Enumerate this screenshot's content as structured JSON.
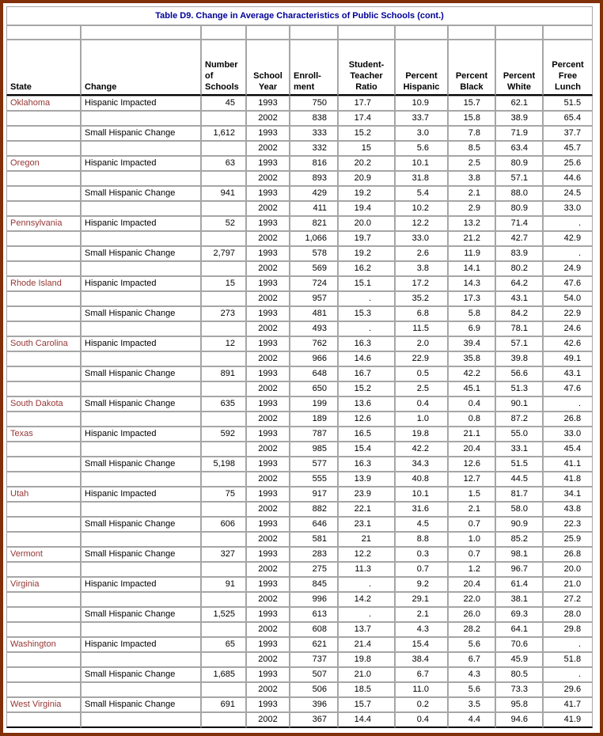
{
  "page": {
    "border_color": "#81300A",
    "background_color": "#FFFFFF"
  },
  "table": {
    "title": "Table D9. Change in Average Characteristics of Public Schools (cont.)",
    "missing_value_symbol": ".",
    "colors": {
      "title_text": "#000099",
      "state_text": "#953735",
      "grid_line": "#A6A6A6",
      "header_rule": "#000000",
      "data_text": "#000000"
    },
    "columns": [
      "State",
      "Change",
      "Number of Schools",
      "School Year",
      "Enroll-ment",
      "Student-Teacher Ratio",
      "Percent Hispanic",
      "Percent Black",
      "Percent White",
      "Percent Free Lunch"
    ],
    "rows": [
      [
        "Oklahoma",
        "Hispanic Impacted",
        "45",
        "1993",
        "750",
        "17.7",
        "10.9",
        "15.7",
        "62.1",
        "51.5"
      ],
      [
        "",
        "",
        "",
        "2002",
        "838",
        "17.4",
        "33.7",
        "15.8",
        "38.9",
        "65.4"
      ],
      [
        "",
        "Small Hispanic Change",
        "1,612",
        "1993",
        "333",
        "15.2",
        "3.0",
        "7.8",
        "71.9",
        "37.7"
      ],
      [
        "",
        "",
        "",
        "2002",
        "332",
        "15",
        "5.6",
        "8.5",
        "63.4",
        "45.7"
      ],
      [
        "Oregon",
        "Hispanic Impacted",
        "63",
        "1993",
        "816",
        "20.2",
        "10.1",
        "2.5",
        "80.9",
        "25.6"
      ],
      [
        "",
        "",
        "",
        "2002",
        "893",
        "20.9",
        "31.8",
        "3.8",
        "57.1",
        "44.6"
      ],
      [
        "",
        "Small Hispanic Change",
        "941",
        "1993",
        "429",
        "19.2",
        "5.4",
        "2.1",
        "88.0",
        "24.5"
      ],
      [
        "",
        "",
        "",
        "2002",
        "411",
        "19.4",
        "10.2",
        "2.9",
        "80.9",
        "33.0"
      ],
      [
        "Pennsylvania",
        "Hispanic Impacted",
        "52",
        "1993",
        "821",
        "20.0",
        "12.2",
        "13.2",
        "71.4",
        "."
      ],
      [
        "",
        "",
        "",
        "2002",
        "1,066",
        "19.7",
        "33.0",
        "21.2",
        "42.7",
        "42.9"
      ],
      [
        "",
        "Small Hispanic Change",
        "2,797",
        "1993",
        "578",
        "19.2",
        "2.6",
        "11.9",
        "83.9",
        "."
      ],
      [
        "",
        "",
        "",
        "2002",
        "569",
        "16.2",
        "3.8",
        "14.1",
        "80.2",
        "24.9"
      ],
      [
        "Rhode Island",
        "Hispanic Impacted",
        "15",
        "1993",
        "724",
        "15.1",
        "17.2",
        "14.3",
        "64.2",
        "47.6"
      ],
      [
        "",
        "",
        "",
        "2002",
        "957",
        ".",
        "35.2",
        "17.3",
        "43.1",
        "54.0"
      ],
      [
        "",
        "Small Hispanic Change",
        "273",
        "1993",
        "481",
        "15.3",
        "6.8",
        "5.8",
        "84.2",
        "22.9"
      ],
      [
        "",
        "",
        "",
        "2002",
        "493",
        ".",
        "11.5",
        "6.9",
        "78.1",
        "24.6"
      ],
      [
        "South Carolina",
        "Hispanic Impacted",
        "12",
        "1993",
        "762",
        "16.3",
        "2.0",
        "39.4",
        "57.1",
        "42.6"
      ],
      [
        "",
        "",
        "",
        "2002",
        "966",
        "14.6",
        "22.9",
        "35.8",
        "39.8",
        "49.1"
      ],
      [
        "",
        "Small Hispanic Change",
        "891",
        "1993",
        "648",
        "16.7",
        "0.5",
        "42.2",
        "56.6",
        "43.1"
      ],
      [
        "",
        "",
        "",
        "2002",
        "650",
        "15.2",
        "2.5",
        "45.1",
        "51.3",
        "47.6"
      ],
      [
        "South Dakota",
        "Small Hispanic Change",
        "635",
        "1993",
        "199",
        "13.6",
        "0.4",
        "0.4",
        "90.1",
        "."
      ],
      [
        "",
        "",
        "",
        "2002",
        "189",
        "12.6",
        "1.0",
        "0.8",
        "87.2",
        "26.8"
      ],
      [
        "Texas",
        "Hispanic Impacted",
        "592",
        "1993",
        "787",
        "16.5",
        "19.8",
        "21.1",
        "55.0",
        "33.0"
      ],
      [
        "",
        "",
        "",
        "2002",
        "985",
        "15.4",
        "42.2",
        "20.4",
        "33.1",
        "45.4"
      ],
      [
        "",
        "Small Hispanic Change",
        "5,198",
        "1993",
        "577",
        "16.3",
        "34.3",
        "12.6",
        "51.5",
        "41.1"
      ],
      [
        "",
        "",
        "",
        "2002",
        "555",
        "13.9",
        "40.8",
        "12.7",
        "44.5",
        "41.8"
      ],
      [
        "Utah",
        "Hispanic Impacted",
        "75",
        "1993",
        "917",
        "23.9",
        "10.1",
        "1.5",
        "81.7",
        "34.1"
      ],
      [
        "",
        "",
        "",
        "2002",
        "882",
        "22.1",
        "31.6",
        "2.1",
        "58.0",
        "43.8"
      ],
      [
        "",
        "Small Hispanic Change",
        "606",
        "1993",
        "646",
        "23.1",
        "4.5",
        "0.7",
        "90.9",
        "22.3"
      ],
      [
        "",
        "",
        "",
        "2002",
        "581",
        "21",
        "8.8",
        "1.0",
        "85.2",
        "25.9"
      ],
      [
        "Vermont",
        "Small Hispanic Change",
        "327",
        "1993",
        "283",
        "12.2",
        "0.3",
        "0.7",
        "98.1",
        "26.8"
      ],
      [
        "",
        "",
        "",
        "2002",
        "275",
        "11.3",
        "0.7",
        "1.2",
        "96.7",
        "20.0"
      ],
      [
        "Virginia",
        "Hispanic Impacted",
        "91",
        "1993",
        "845",
        ".",
        "9.2",
        "20.4",
        "61.4",
        "21.0"
      ],
      [
        "",
        "",
        "",
        "2002",
        "996",
        "14.2",
        "29.1",
        "22.0",
        "38.1",
        "27.2"
      ],
      [
        "",
        "Small Hispanic Change",
        "1,525",
        "1993",
        "613",
        ".",
        "2.1",
        "26.0",
        "69.3",
        "28.0"
      ],
      [
        "",
        "",
        "",
        "2002",
        "608",
        "13.7",
        "4.3",
        "28.2",
        "64.1",
        "29.8"
      ],
      [
        "Washington",
        "Hispanic Impacted",
        "65",
        "1993",
        "621",
        "21.4",
        "15.4",
        "5.6",
        "70.6",
        "."
      ],
      [
        "",
        "",
        "",
        "2002",
        "737",
        "19.8",
        "38.4",
        "6.7",
        "45.9",
        "51.8"
      ],
      [
        "",
        "Small Hispanic Change",
        "1,685",
        "1993",
        "507",
        "21.0",
        "6.7",
        "4.3",
        "80.5",
        "."
      ],
      [
        "",
        "",
        "",
        "2002",
        "506",
        "18.5",
        "11.0",
        "5.6",
        "73.3",
        "29.6"
      ],
      [
        "West Virginia",
        "Small Hispanic Change",
        "691",
        "1993",
        "396",
        "15.7",
        "0.2",
        "3.5",
        "95.8",
        "41.7"
      ],
      [
        "",
        "",
        "",
        "2002",
        "367",
        "14.4",
        "0.4",
        "4.4",
        "94.6",
        "41.9"
      ]
    ]
  }
}
